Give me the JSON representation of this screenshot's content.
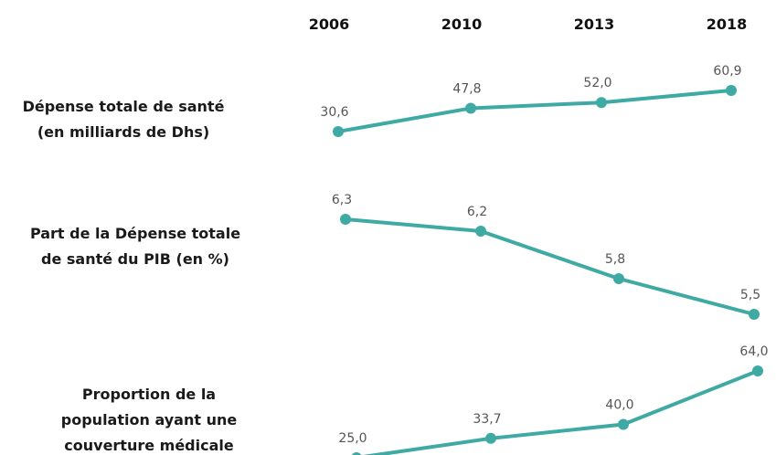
{
  "colors": {
    "accent": "#3fa9a4",
    "text": "#1a1a1a",
    "value_text": "#555555"
  },
  "chart_data": {
    "type": "line",
    "x": [
      "2006",
      "2010",
      "2013",
      "2018"
    ],
    "series": [
      {
        "name": "Dépense totale de santé (en milliards de Dhs)",
        "label_lines": [
          "Dépense totale de santé",
          "(en milliards de Dhs)"
        ],
        "values": [
          30.6,
          47.8,
          52.0,
          60.9
        ],
        "value_labels": [
          "30,6",
          "47,8",
          "52,0",
          "60,9"
        ]
      },
      {
        "name": "Part de la Dépense totale de santé du PIB (en %)",
        "label_lines": [
          "Part de la Dépense totale",
          "de santé du PIB (en %)"
        ],
        "values": [
          6.3,
          6.2,
          5.8,
          5.5
        ],
        "value_labels": [
          "6,3",
          "6,2",
          "5,8",
          "5,5"
        ]
      },
      {
        "name": "Proportion de la population ayant une couverture médicale",
        "label_lines": [
          "Proportion de la",
          "population ayant une",
          "couverture médicale"
        ],
        "values": [
          25.0,
          33.7,
          40.0,
          64.0
        ],
        "value_labels": [
          "25,0",
          "33,7",
          "40,0",
          "64,0"
        ]
      }
    ]
  }
}
